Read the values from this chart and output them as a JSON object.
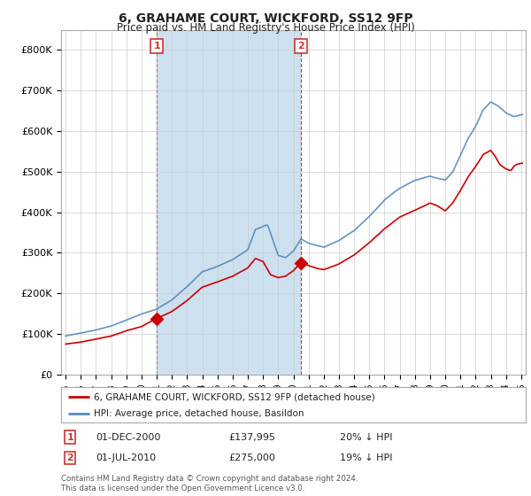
{
  "title": "6, GRAHAME COURT, WICKFORD, SS12 9FP",
  "subtitle": "Price paid vs. HM Land Registry's House Price Index (HPI)",
  "legend_line1": "6, GRAHAME COURT, WICKFORD, SS12 9FP (detached house)",
  "legend_line2": "HPI: Average price, detached house, Basildon",
  "annotation1_date": "01-DEC-2000",
  "annotation1_price": "£137,995",
  "annotation1_hpi": "20% ↓ HPI",
  "annotation2_date": "01-JUL-2010",
  "annotation2_price": "£275,000",
  "annotation2_hpi": "19% ↓ HPI",
  "footer": "Contains HM Land Registry data © Crown copyright and database right 2024.\nThis data is licensed under the Open Government Licence v3.0.",
  "red_color": "#cc0000",
  "blue_color": "#5588bb",
  "blue_fill_color": "#cce0f0",
  "vline1_color": "#888888",
  "vline2_color": "#cc3333",
  "annotation_box_color": "#cc3333",
  "grid_color": "#cccccc",
  "bg_color": "#ffffff",
  "plot_bg": "#ffffff",
  "ylim": [
    0,
    850000
  ],
  "yticks": [
    0,
    100000,
    200000,
    300000,
    400000,
    500000,
    600000,
    700000,
    800000
  ],
  "ytick_labels": [
    "£0",
    "£100K",
    "£200K",
    "£300K",
    "£400K",
    "£500K",
    "£600K",
    "£700K",
    "£800K"
  ],
  "purchase1_x": 2001.0,
  "purchase1_y": 137995,
  "purchase2_x": 2010.5,
  "purchase2_y": 275000,
  "vline1_x": 2001.0,
  "vline2_x": 2010.5,
  "xmin": 1995.0,
  "xmax": 2025.0
}
